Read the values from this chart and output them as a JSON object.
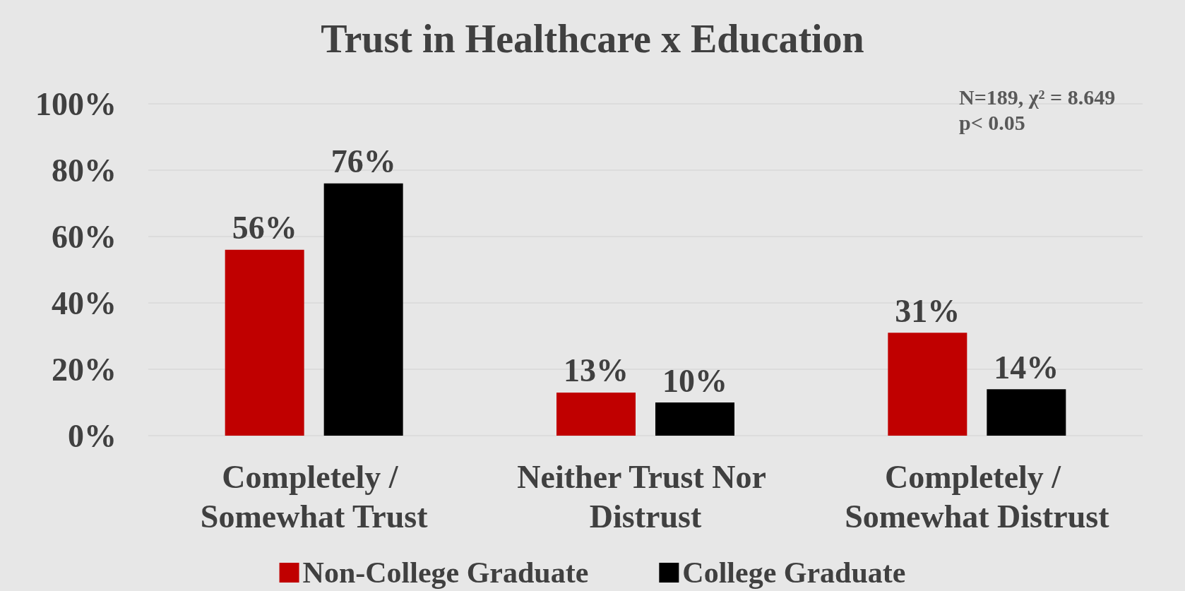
{
  "chart_data": {
    "type": "bar",
    "title": "Trust in Healthcare x Education",
    "categories": [
      "Completely / Somewhat Trust",
      "Neither Trust Nor Distrust",
      "Completely / Somewhat Distrust"
    ],
    "series": [
      {
        "name": "Non-College Graduate",
        "color": "#c00000",
        "values": [
          56,
          13,
          31
        ],
        "value_labels": [
          "56%",
          "13%",
          "31%"
        ]
      },
      {
        "name": "College Graduate",
        "color": "#000000",
        "values": [
          76,
          10,
          14
        ],
        "value_labels": [
          "76%",
          "10%",
          "14%"
        ]
      }
    ],
    "ylim": [
      0,
      100
    ],
    "yticks": [
      {
        "value": 0,
        "label": "0%"
      },
      {
        "value": 20,
        "label": "20%"
      },
      {
        "value": 40,
        "label": "40%"
      },
      {
        "value": 60,
        "label": "60%"
      },
      {
        "value": 80,
        "label": "80%"
      },
      {
        "value": 100,
        "label": "100%"
      }
    ],
    "grid": "y",
    "legend": "bottom",
    "annotations": [
      "N=189, χ² = 8.649",
      "p< 0.05"
    ]
  }
}
